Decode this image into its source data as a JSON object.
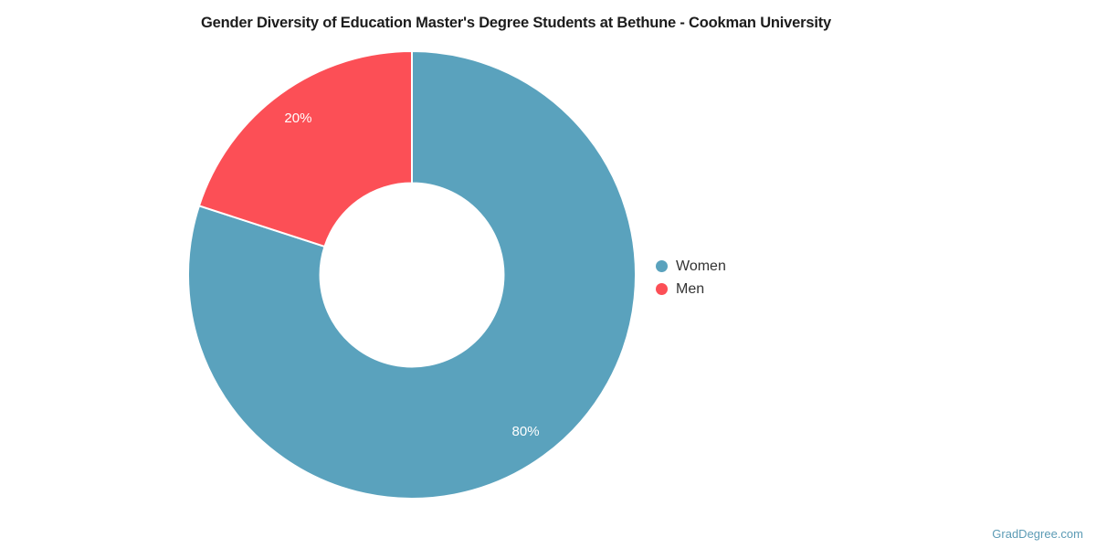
{
  "chart_data": {
    "type": "pie",
    "subtype": "donut",
    "title": "Gender Diversity of Education Master's Degree Students at Bethune - Cookman University",
    "series": [
      {
        "name": "Women",
        "value": 80,
        "label": "80%",
        "color": "#5AA2BD"
      },
      {
        "name": "Men",
        "value": 20,
        "label": "20%",
        "color": "#FC4F56"
      }
    ],
    "donut_hole_ratio": 0.41,
    "start_angle_deg": 0,
    "direction": "clockwise",
    "legend_position": "right",
    "data_label_color": "#ffffff",
    "slice_border_color": "#ffffff"
  },
  "watermark": {
    "text": "GradDegree.com",
    "color": "#5C9BB5"
  }
}
